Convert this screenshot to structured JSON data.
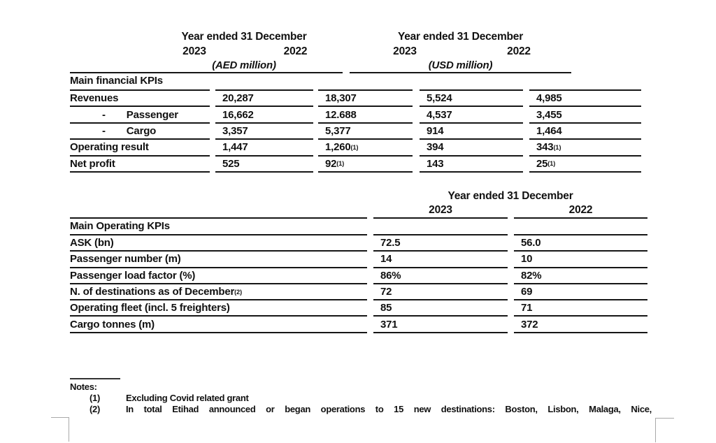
{
  "financial_table": {
    "group1": {
      "title": "Year ended 31 December",
      "year1": "2023",
      "year2": "2022",
      "unit": "(AED million)"
    },
    "group2": {
      "title": "Year ended 31 December",
      "year1": "2023",
      "year2": "2022",
      "unit": "(USD million)"
    },
    "section_title": "Main financial KPIs",
    "rows": [
      {
        "label": "Revenues",
        "indent": false,
        "cells": [
          {
            "v": "20,287",
            "sup": ""
          },
          {
            "v": "18,307",
            "sup": ""
          },
          {
            "v": "5,524",
            "sup": ""
          },
          {
            "v": "4,985",
            "sup": ""
          }
        ]
      },
      {
        "label": "Passenger",
        "indent": true,
        "cells": [
          {
            "v": "16,662",
            "sup": ""
          },
          {
            "v": "12.688",
            "sup": ""
          },
          {
            "v": "4,537",
            "sup": ""
          },
          {
            "v": "3,455",
            "sup": ""
          }
        ]
      },
      {
        "label": "Cargo",
        "indent": true,
        "cells": [
          {
            "v": "3,357",
            "sup": ""
          },
          {
            "v": "5,377",
            "sup": ""
          },
          {
            "v": "914",
            "sup": ""
          },
          {
            "v": "1,464",
            "sup": ""
          }
        ]
      },
      {
        "label": "Operating result",
        "indent": false,
        "cells": [
          {
            "v": "1,447",
            "sup": ""
          },
          {
            "v": "1,260",
            "sup": "(1)"
          },
          {
            "v": "394",
            "sup": ""
          },
          {
            "v": "343",
            "sup": "(1)"
          }
        ]
      },
      {
        "label": "Net profit",
        "indent": false,
        "cells": [
          {
            "v": "525",
            "sup": ""
          },
          {
            "v": "92",
            "sup": "(1)"
          },
          {
            "v": "143",
            "sup": ""
          },
          {
            "v": "25",
            "sup": "(1)"
          }
        ]
      }
    ]
  },
  "operating_table": {
    "header": {
      "title": "Year ended 31 December",
      "year1": "2023",
      "year2": "2022"
    },
    "section_title": "Main Operating KPIs",
    "rows": [
      {
        "label": "ASK (bn)",
        "sup": "",
        "cells": [
          "72.5",
          "56.0"
        ]
      },
      {
        "label": "Passenger number (m)",
        "sup": "",
        "cells": [
          "14",
          "10"
        ]
      },
      {
        "label": "Passenger load factor (%)",
        "sup": "",
        "cells": [
          "86%",
          "82%"
        ]
      },
      {
        "label": "N. of destinations as of December",
        "sup": "(2)",
        "cells": [
          "72",
          "69"
        ]
      },
      {
        "label": "Operating fleet (incl. 5 freighters)",
        "sup": "",
        "cells": [
          "85",
          "71"
        ]
      },
      {
        "label": "Cargo tonnes (m)",
        "sup": "",
        "cells": [
          "371",
          "372"
        ]
      }
    ]
  },
  "notes": {
    "title": "Notes:",
    "items": [
      {
        "num": "(1)",
        "text": "Excluding Covid related grant"
      },
      {
        "num": "(2)",
        "text": "In total Etihad announced or began operations to 15 new destinations: Boston, Lisbon, Malaga, Nice,"
      }
    ]
  }
}
